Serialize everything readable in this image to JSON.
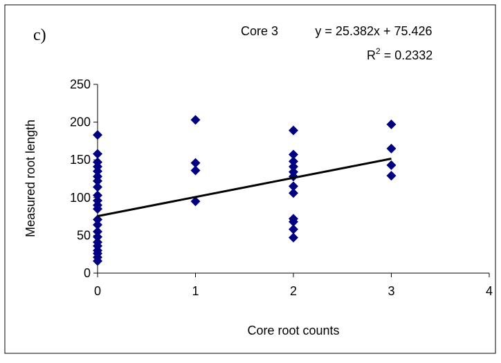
{
  "chart_data": {
    "type": "scatter",
    "panel_label": "c)",
    "title": "Core 3",
    "equation": "y = 25.382x + 75.426",
    "r2_label": {
      "base": "R",
      "sup": "2",
      "rest": " = 0.2332"
    },
    "x_label": "Core root counts",
    "y_label": "Measured root length",
    "color": "#000080",
    "trendline": {
      "slope": 25.382,
      "intercept": 75.426,
      "x_range": [
        0,
        3
      ],
      "color": "#000000"
    },
    "x": [
      0,
      0,
      0,
      0,
      0,
      0,
      0,
      0,
      0,
      0,
      0,
      0,
      0,
      0,
      0,
      0,
      0,
      0,
      0,
      0,
      0,
      0,
      1,
      1,
      1,
      1,
      2,
      2,
      2,
      2,
      2,
      2,
      2,
      2,
      2,
      2,
      2,
      2,
      3,
      3,
      3,
      3
    ],
    "values": [
      183,
      158,
      147,
      141,
      135,
      128,
      122,
      114,
      103,
      96,
      90,
      85,
      71,
      64,
      55,
      48,
      41,
      36,
      30,
      26,
      21,
      16,
      203,
      146,
      136,
      95,
      189,
      157,
      148,
      141,
      134,
      128,
      115,
      106,
      72,
      68,
      58,
      47,
      197,
      165,
      143,
      129
    ],
    "xlim": [
      0,
      4
    ],
    "xticks": [
      0,
      1,
      2,
      3,
      4
    ],
    "ylim": [
      0,
      250
    ],
    "yticks": [
      0,
      50,
      100,
      150,
      200,
      250
    ],
    "grid": false
  }
}
